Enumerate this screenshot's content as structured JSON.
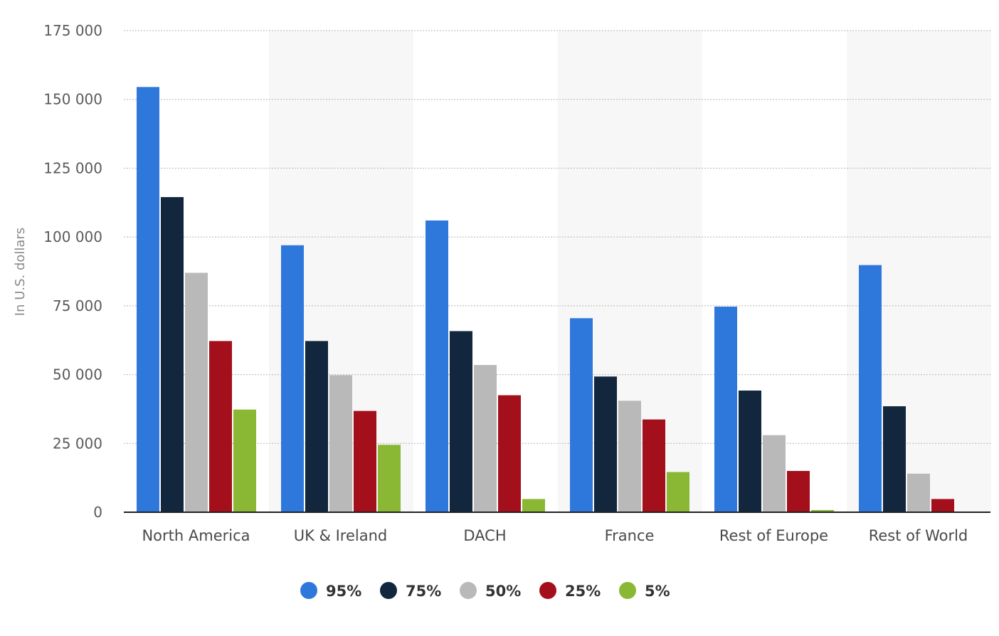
{
  "chart_data": {
    "type": "bar",
    "ylabel": "In U.S. dollars",
    "ylim": [
      0,
      175000
    ],
    "yticks": [
      0,
      25000,
      50000,
      75000,
      100000,
      125000,
      150000,
      175000
    ],
    "ytick_labels": [
      "0",
      "25 000",
      "50 000",
      "75 000",
      "100 000",
      "125 000",
      "150 000",
      "175 000"
    ],
    "categories": [
      "North America",
      "UK & Ireland",
      "DACH",
      "France",
      "Rest of Europe",
      "Rest of World"
    ],
    "series": [
      {
        "name": "95%",
        "color": "#2f78db",
        "values": [
          154500,
          97000,
          106000,
          70500,
          74700,
          89800
        ]
      },
      {
        "name": "75%",
        "color": "#12263d",
        "values": [
          114500,
          62200,
          65800,
          49300,
          44200,
          38500
        ]
      },
      {
        "name": "50%",
        "color": "#b9b9b9",
        "values": [
          87000,
          49800,
          53500,
          40500,
          28000,
          14000
        ]
      },
      {
        "name": "25%",
        "color": "#a30f1a",
        "values": [
          62200,
          36800,
          42500,
          33700,
          15000,
          4800
        ]
      },
      {
        "name": "5%",
        "color": "#8ab835",
        "values": [
          37300,
          24500,
          4800,
          14600,
          800,
          0
        ]
      }
    ],
    "grid": true,
    "legend": "bottom-center",
    "band_color": "#f7f7f7"
  }
}
